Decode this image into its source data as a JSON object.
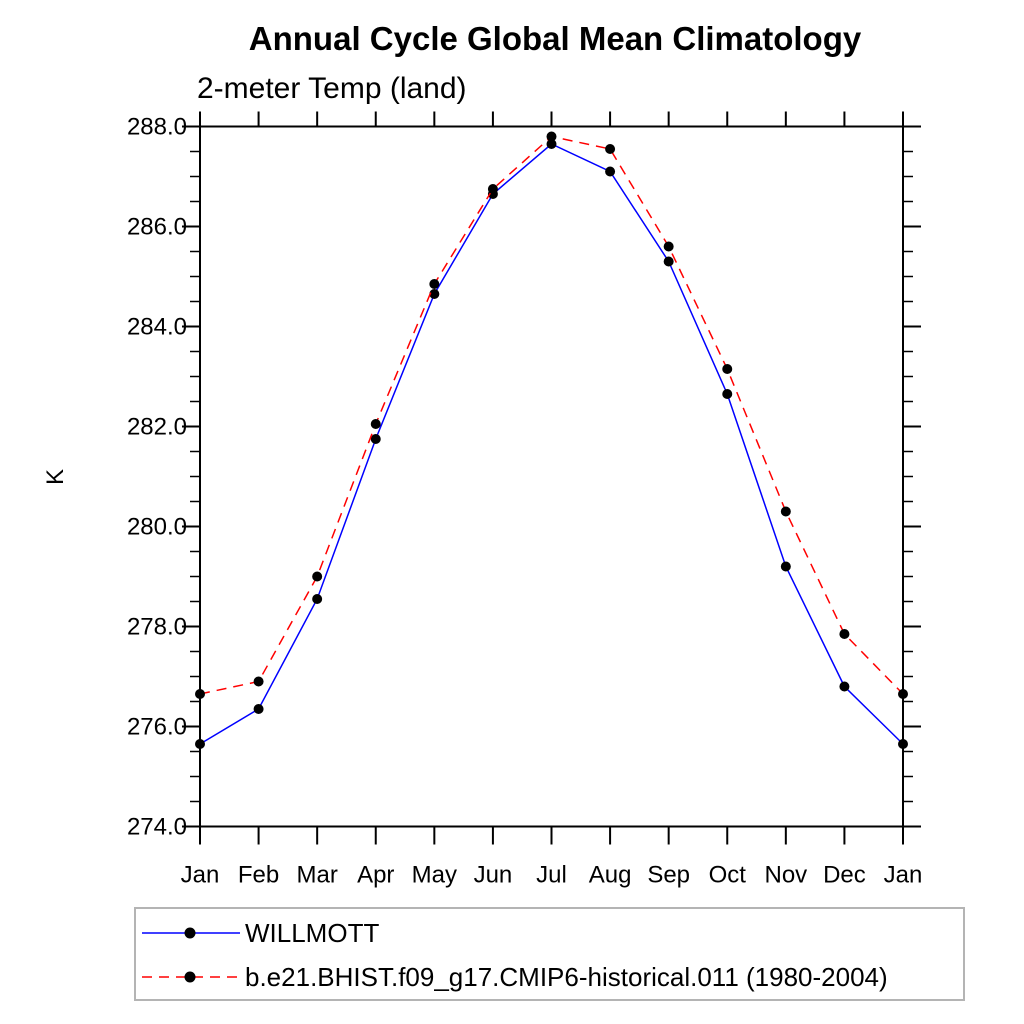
{
  "chart_data": {
    "type": "line",
    "title": "Annual Cycle Global Mean Climatology",
    "subtitle": "2-meter Temp (land)",
    "ylabel": "K",
    "categories": [
      "Jan",
      "Feb",
      "Mar",
      "Apr",
      "May",
      "Jun",
      "Jul",
      "Aug",
      "Sep",
      "Oct",
      "Nov",
      "Dec",
      "Jan"
    ],
    "ylim": [
      274.0,
      288.0
    ],
    "ytick_major": 2.0,
    "ytick_minor": 0.5,
    "ytick_labels": [
      "274.0",
      "276.0",
      "278.0",
      "280.0",
      "282.0",
      "284.0",
      "286.0",
      "288.0"
    ],
    "grid": false,
    "legend_position": "bottom-left-box",
    "legend_border_color": "#b4b4b4",
    "axis_color": "#000000",
    "marker_color": "#000000",
    "series": [
      {
        "name": "WILLMOTT",
        "color": "#0000ff",
        "style": "solid",
        "marker": "circle",
        "values": [
          275.65,
          276.35,
          278.55,
          281.75,
          284.65,
          286.65,
          287.65,
          287.1,
          285.3,
          282.65,
          279.2,
          276.8,
          275.65
        ]
      },
      {
        "name": "b.e21.BHIST.f09_g17.CMIP6-historical.011 (1980-2004)",
        "color": "#ff0000",
        "style": "dashed",
        "marker": "circle",
        "values": [
          276.65,
          276.9,
          279.0,
          282.05,
          284.85,
          286.75,
          287.8,
          287.55,
          285.6,
          283.15,
          280.3,
          277.85,
          276.65
        ]
      }
    ]
  }
}
